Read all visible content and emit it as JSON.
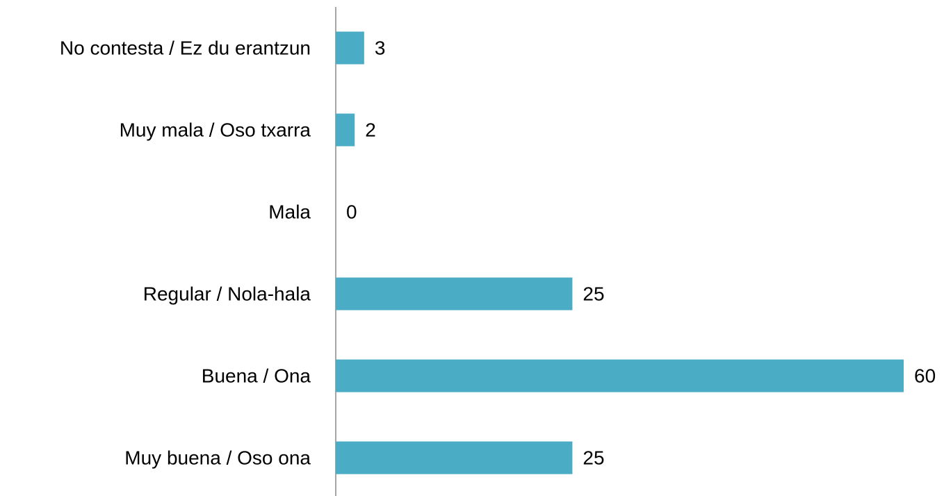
{
  "chart_data": {
    "type": "bar",
    "orientation": "horizontal",
    "categories": [
      "No contesta / Ez du erantzun",
      "Muy mala / Oso txarra",
      "Mala",
      "Regular / Nola-hala",
      "Buena / Ona",
      "Muy buena / Oso ona"
    ],
    "values": [
      3,
      2,
      0,
      25,
      60,
      25
    ],
    "color": "#4bacc6"
  }
}
